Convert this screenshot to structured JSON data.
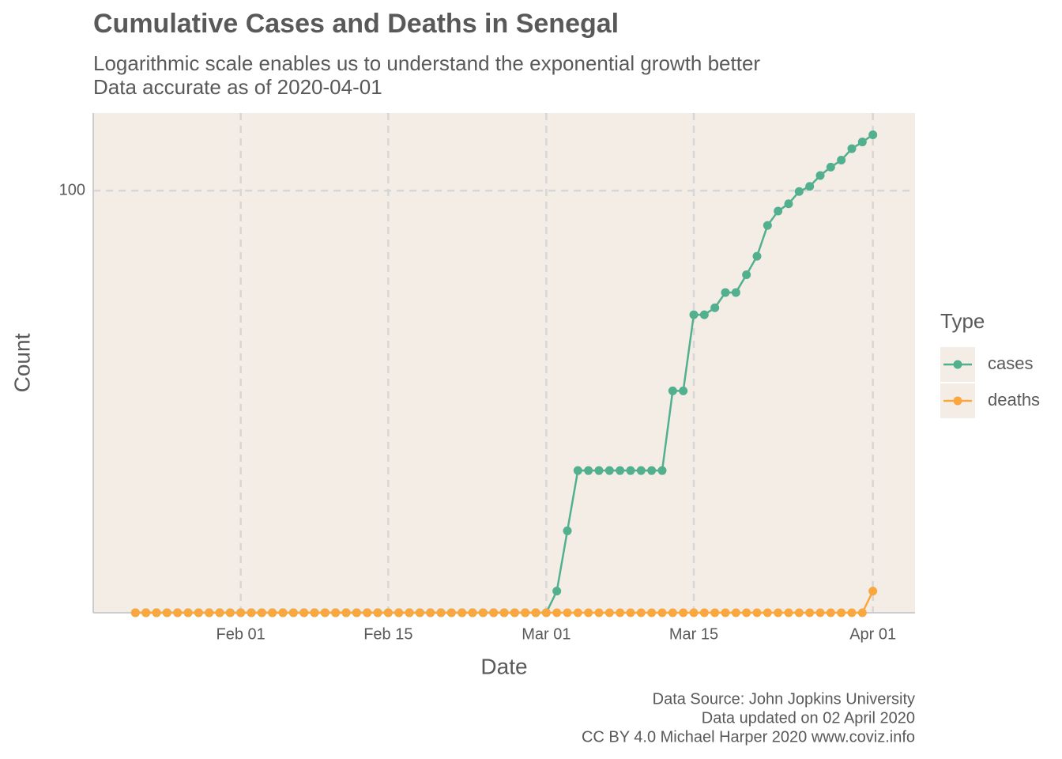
{
  "chart_data": {
    "type": "line",
    "title": "Cumulative Cases and Deaths in Senegal",
    "subtitle": [
      "Logarithmic scale enables us to understand the exponential growth better",
      "Data accurate as of 2020-04-01"
    ],
    "x_label": "Date",
    "y_label": "Count",
    "caption": [
      "Data Source: John Jopkins University",
      "Data updated on 02 April 2020",
      "CC BY 4.0 Michael Harper 2020 www.coviz.info"
    ],
    "legend_title": "Type",
    "legend_position": "right",
    "log_scale_y": true,
    "grid": true,
    "x": [
      "Jan 22",
      "Jan 23",
      "Jan 24",
      "Jan 25",
      "Jan 26",
      "Jan 27",
      "Jan 28",
      "Jan 29",
      "Jan 30",
      "Jan 31",
      "Feb 01",
      "Feb 02",
      "Feb 03",
      "Feb 04",
      "Feb 05",
      "Feb 06",
      "Feb 07",
      "Feb 08",
      "Feb 09",
      "Feb 10",
      "Feb 11",
      "Feb 12",
      "Feb 13",
      "Feb 14",
      "Feb 15",
      "Feb 16",
      "Feb 17",
      "Feb 18",
      "Feb 19",
      "Feb 20",
      "Feb 21",
      "Feb 22",
      "Feb 23",
      "Feb 24",
      "Feb 25",
      "Feb 26",
      "Feb 27",
      "Feb 28",
      "Feb 29",
      "Mar 01",
      "Mar 02",
      "Mar 03",
      "Mar 04",
      "Mar 05",
      "Mar 06",
      "Mar 07",
      "Mar 08",
      "Mar 09",
      "Mar 10",
      "Mar 11",
      "Mar 12",
      "Mar 13",
      "Mar 14",
      "Mar 15",
      "Mar 16",
      "Mar 17",
      "Mar 18",
      "Mar 19",
      "Mar 20",
      "Mar 21",
      "Mar 22",
      "Mar 23",
      "Mar 24",
      "Mar 25",
      "Mar 26",
      "Mar 27",
      "Mar 28",
      "Mar 29",
      "Mar 30",
      "Mar 31",
      "Apr 01"
    ],
    "series": [
      {
        "name": "cases",
        "color": "#52b08e",
        "values": [
          0,
          0,
          0,
          0,
          0,
          0,
          0,
          0,
          0,
          0,
          0,
          0,
          0,
          0,
          0,
          0,
          0,
          0,
          0,
          0,
          0,
          0,
          0,
          0,
          0,
          0,
          0,
          0,
          0,
          0,
          0,
          0,
          0,
          0,
          0,
          0,
          0,
          0,
          0,
          0,
          1,
          2,
          4,
          4,
          4,
          4,
          4,
          4,
          4,
          4,
          4,
          10,
          10,
          24,
          24,
          26,
          31,
          31,
          38,
          47,
          67,
          79,
          86,
          99,
          105,
          119,
          131,
          142,
          162,
          175,
          190
        ]
      },
      {
        "name": "deaths",
        "color": "#f9a73e",
        "values": [
          0,
          0,
          0,
          0,
          0,
          0,
          0,
          0,
          0,
          0,
          0,
          0,
          0,
          0,
          0,
          0,
          0,
          0,
          0,
          0,
          0,
          0,
          0,
          0,
          0,
          0,
          0,
          0,
          0,
          0,
          0,
          0,
          0,
          0,
          0,
          0,
          0,
          0,
          0,
          0,
          0,
          0,
          0,
          0,
          0,
          0,
          0,
          0,
          0,
          0,
          0,
          0,
          0,
          0,
          0,
          0,
          0,
          0,
          0,
          0,
          0,
          0,
          0,
          0,
          0,
          0,
          0,
          0,
          0,
          0,
          1
        ]
      }
    ],
    "xlim": [
      "Jan 18",
      "Apr 05"
    ],
    "xticks": [
      "Feb 01",
      "Feb 15",
      "Mar 01",
      "Mar 15",
      "Apr 01"
    ],
    "ylim": [
      0.78,
      244
    ],
    "yticks": [
      100
    ]
  }
}
